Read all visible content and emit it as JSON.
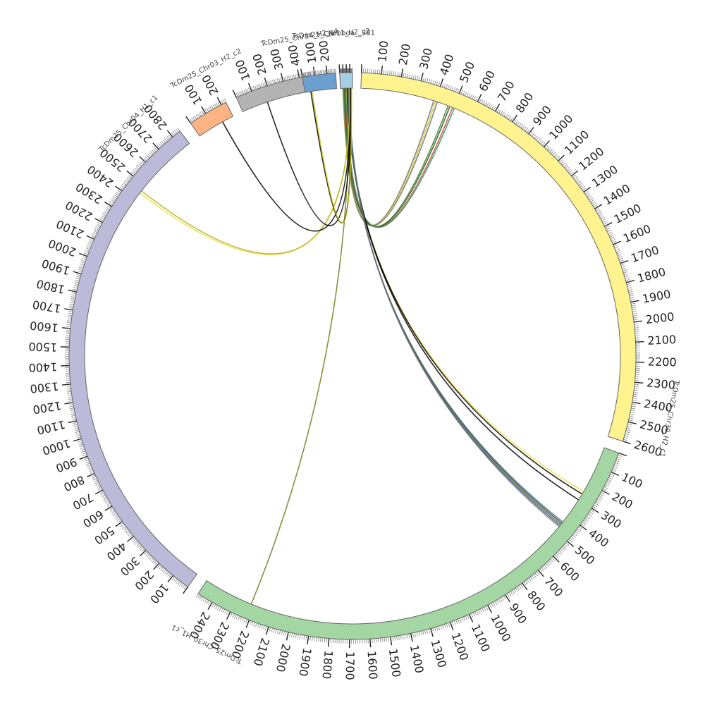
{
  "diagram": {
    "type": "circos",
    "tick_interval": 100,
    "minor_ticks_per_major": 10,
    "contigs": [
      {
        "id": "lambda",
        "name": "lambda__381",
        "length": 381,
        "start_angle": 357.4,
        "end_angle": 360.0,
        "color": "#A6CEE3",
        "label_ticks": false
      },
      {
        "id": "chr30h2",
        "name": "TcDm25_Chr30_H2_c1",
        "length": 2600,
        "start_angle": 1.8,
        "end_angle": 107.5,
        "color": "#FFF38F",
        "label_ticks": true
      },
      {
        "id": "chr30h1",
        "name": "TcDm25_Chr30_H1_c1",
        "length": 2480,
        "start_angle": 110.0,
        "end_angle": 213.0,
        "color": "#A3D6A2",
        "label_ticks": true
      },
      {
        "id": "chr04h1",
        "name": "TcDm25_Chr04_H1_c1",
        "length": 2850,
        "start_angle": 215.5,
        "end_angle": 322.5,
        "color": "#BCBAD9",
        "label_ticks": true
      },
      {
        "id": "chr03h2",
        "name": "TcDm25_Chr03_H2_c2",
        "length": 230,
        "start_angle": 325.2,
        "end_angle": 333.5,
        "color": "#FDB482",
        "label_ticks": true
      },
      {
        "id": "chr14h2",
        "name": "TcDm25_Chr14_H2_c4",
        "length": 470,
        "start_angle": 335.8,
        "end_angle": 351.5,
        "color": "#B3B3B3",
        "label_ticks": true
      },
      {
        "id": "chr11h2",
        "name": "TcDm25_Chr11_H2_c2",
        "length": 270,
        "start_angle": 349.8,
        "end_angle": 356.6,
        "color": "#6A9FCF",
        "label_ticks": true
      }
    ],
    "links": [
      {
        "source": "lambda",
        "source_pos": 80,
        "target": "chr30h2",
        "target_pos": 390,
        "color": "#6E6E6E"
      },
      {
        "source": "lambda",
        "source_pos": 90,
        "target": "chr30h2",
        "target_pos": 400,
        "color": "#C8C820"
      },
      {
        "source": "lambda",
        "source_pos": 100,
        "target": "chr30h2",
        "target_pos": 410,
        "color": "#6E6E6E"
      },
      {
        "source": "lambda",
        "source_pos": 120,
        "target": "chr30h2",
        "target_pos": 470,
        "color": "#3C7A2A"
      },
      {
        "source": "lambda",
        "source_pos": 140,
        "target": "chr30h2",
        "target_pos": 480,
        "color": "#1E5A1E"
      },
      {
        "source": "lambda",
        "source_pos": 160,
        "target": "chr30h2",
        "target_pos": 495,
        "color": "#C84830"
      },
      {
        "source": "lambda",
        "source_pos": 180,
        "target": "chr30h2",
        "target_pos": 505,
        "color": "#2E8B57"
      },
      {
        "source": "lambda",
        "source_pos": 200,
        "target": "chr30h1",
        "target_pos": 250,
        "color": "#F0E040"
      },
      {
        "source": "lambda",
        "source_pos": 210,
        "target": "chr30h1",
        "target_pos": 265,
        "color": "#000000"
      },
      {
        "source": "lambda",
        "source_pos": 220,
        "target": "chr30h1",
        "target_pos": 300,
        "color": "#000000"
      },
      {
        "source": "lambda",
        "source_pos": 230,
        "target": "chr30h1",
        "target_pos": 440,
        "color": "#2D7F5E"
      },
      {
        "source": "lambda",
        "source_pos": 240,
        "target": "chr30h1",
        "target_pos": 448,
        "color": "#4B3A8A"
      },
      {
        "source": "lambda",
        "source_pos": 250,
        "target": "chr30h1",
        "target_pos": 455,
        "color": "#7A8B2A"
      },
      {
        "source": "lambda",
        "source_pos": 260,
        "target": "chr30h1",
        "target_pos": 462,
        "color": "#3B5998"
      },
      {
        "source": "lambda",
        "source_pos": 270,
        "target": "chr30h1",
        "target_pos": 470,
        "color": "#6E6E6E"
      },
      {
        "source": "lambda",
        "source_pos": 280,
        "target": "chr30h1",
        "target_pos": 2220,
        "color": "#7A7A20"
      },
      {
        "source": "lambda",
        "source_pos": 300,
        "target": "chr04h1",
        "target_pos": 2450,
        "color": "#E8E040"
      },
      {
        "source": "lambda",
        "source_pos": 310,
        "target": "chr04h1",
        "target_pos": 2465,
        "color": "#B8B020"
      },
      {
        "source": "lambda",
        "source_pos": 320,
        "target": "chr03h2",
        "target_pos": 160,
        "color": "#000000"
      },
      {
        "source": "lambda",
        "source_pos": 330,
        "target": "chr14h2",
        "target_pos": 170,
        "color": "#000000"
      },
      {
        "source": "lambda",
        "source_pos": 340,
        "target": "chr11h2",
        "target_pos": 50,
        "color": "#000000"
      },
      {
        "source": "lambda",
        "source_pos": 350,
        "target": "chr11h2",
        "target_pos": 60,
        "color": "#C8C820"
      }
    ]
  }
}
